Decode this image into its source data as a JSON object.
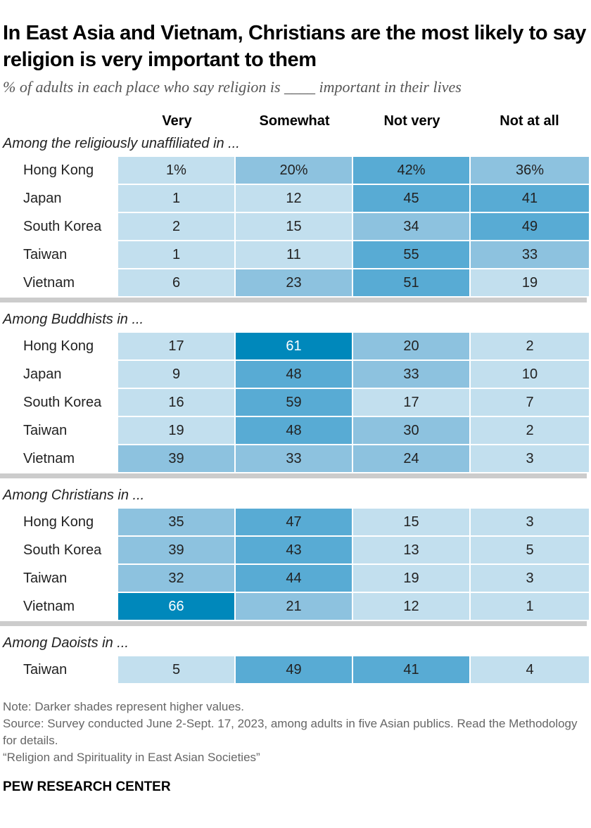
{
  "title": "In East Asia and Vietnam, Christians are the most likely to say religion is very important to them",
  "subtitle": "% of adults in each place who say religion is ____ important in their lives",
  "chart_data": {
    "type": "heatmap",
    "columns": [
      "Very",
      "Somewhat",
      "Not very",
      "Not at all"
    ],
    "groups": [
      {
        "label": "Among the religiously unaffiliated in ...",
        "rows": [
          {
            "name": "Hong Kong",
            "values": [
              1,
              20,
              42,
              36
            ],
            "display": [
              "1%",
              "20%",
              "42%",
              "36%"
            ]
          },
          {
            "name": "Japan",
            "values": [
              1,
              12,
              45,
              41
            ]
          },
          {
            "name": "South Korea",
            "values": [
              2,
              15,
              34,
              49
            ]
          },
          {
            "name": "Taiwan",
            "values": [
              1,
              11,
              55,
              33
            ]
          },
          {
            "name": "Vietnam",
            "values": [
              6,
              23,
              51,
              19
            ]
          }
        ]
      },
      {
        "label": "Among Buddhists in ...",
        "rows": [
          {
            "name": "Hong Kong",
            "values": [
              17,
              61,
              20,
              2
            ]
          },
          {
            "name": "Japan",
            "values": [
              9,
              48,
              33,
              10
            ]
          },
          {
            "name": "South Korea",
            "values": [
              16,
              59,
              17,
              7
            ]
          },
          {
            "name": "Taiwan",
            "values": [
              19,
              48,
              30,
              2
            ]
          },
          {
            "name": "Vietnam",
            "values": [
              39,
              33,
              24,
              3
            ]
          }
        ]
      },
      {
        "label": "Among Christians in ...",
        "rows": [
          {
            "name": "Hong Kong",
            "values": [
              35,
              47,
              15,
              3
            ]
          },
          {
            "name": "South Korea",
            "values": [
              39,
              43,
              13,
              5
            ]
          },
          {
            "name": "Taiwan",
            "values": [
              32,
              44,
              19,
              3
            ]
          },
          {
            "name": "Vietnam",
            "values": [
              66,
              21,
              12,
              1
            ]
          }
        ]
      },
      {
        "label": "Among Daoists in ...",
        "rows": [
          {
            "name": "Taiwan",
            "values": [
              5,
              49,
              41,
              4
            ]
          }
        ]
      }
    ],
    "color_scale": [
      "#c2dfee",
      "#8dc2df",
      "#58abd4",
      "#0088bb"
    ]
  },
  "notes": {
    "note": "Note: Darker shades represent higher values.",
    "source": "Source: Survey conducted June 2-Sept. 17, 2023, among adults in five Asian publics. Read the Methodology for details.",
    "report": "“Religion and Spirituality in East Asian Societies”"
  },
  "logo": "PEW RESEARCH CENTER"
}
